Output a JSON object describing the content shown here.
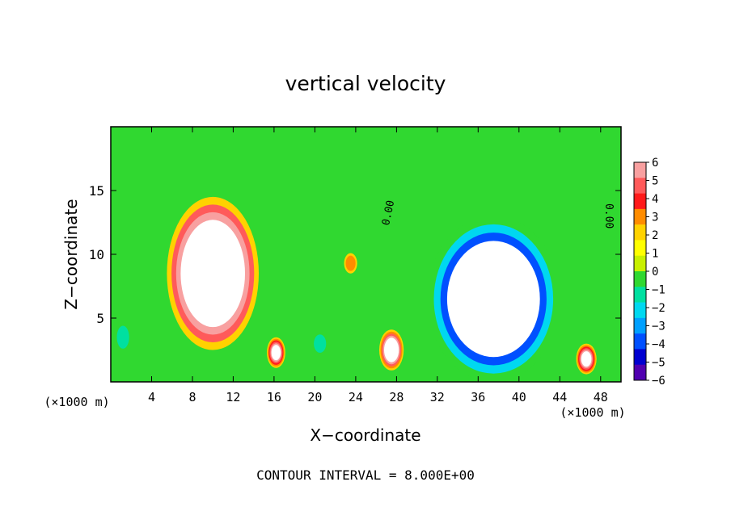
{
  "chart_data": {
    "type": "heatmap",
    "title": "vertical velocity",
    "xlabel": "X−coordinate",
    "ylabel": "Z−coordinate",
    "x_unit_left": "(×1000 m)",
    "x_unit_right": "(×1000 m)",
    "footer": "CONTOUR INTERVAL = 8.000E+00",
    "xlim": [
      0,
      50
    ],
    "ylim": [
      0,
      20
    ],
    "x_ticks": [
      4,
      8,
      12,
      16,
      20,
      24,
      28,
      32,
      36,
      40,
      44,
      48
    ],
    "x_tick_labels": [
      "4",
      "8",
      "12",
      "16",
      "20",
      "24",
      "28",
      "32",
      "36",
      "40",
      "44",
      "48"
    ],
    "y_ticks": [
      5,
      10,
      15
    ],
    "y_tick_labels": [
      "5",
      "10",
      "15"
    ],
    "contour_labels": [
      {
        "text": "0.00",
        "x": 27.5,
        "y": 13.2,
        "angle": -78
      },
      {
        "text": "0.00",
        "x": 48.5,
        "y": 13.0,
        "angle": 90
      }
    ],
    "colorbar": {
      "levels": [
        6,
        5,
        4,
        3,
        2,
        1,
        0,
        -1,
        -2,
        -3,
        -4,
        -5,
        -6
      ],
      "labels": [
        "6",
        "5",
        "4",
        "3",
        "2",
        "1",
        "0",
        "−1",
        "−2",
        "−3",
        "−4",
        "−5",
        "−6"
      ],
      "colors": [
        "#f8a0a0",
        "#ff5a5a",
        "#ff1a1a",
        "#ff8c00",
        "#ffd200",
        "#ffff00",
        "#c8f000",
        "#30d830",
        "#00e0a0",
        "#00d8f0",
        "#00a0ff",
        "#0050ff",
        "#0000d0",
        "#5000b0"
      ]
    },
    "features": [
      {
        "kind": "updraft-core",
        "x": 10.0,
        "z": 8.5,
        "peak": 13,
        "rx": 4.5,
        "rz": 6.0
      },
      {
        "kind": "updraft-cell",
        "x": 27.5,
        "z": 2.5,
        "peak": 9,
        "rx": 1.2,
        "rz": 1.6
      },
      {
        "kind": "updraft-cell",
        "x": 16.2,
        "z": 2.3,
        "peak": 8,
        "rx": 0.9,
        "rz": 1.2
      },
      {
        "kind": "updraft-cell",
        "x": 46.6,
        "z": 1.8,
        "peak": 8,
        "rx": 1.0,
        "rz": 1.2
      },
      {
        "kind": "updraft-cell",
        "x": 23.5,
        "z": 9.3,
        "peak": 3,
        "rx": 0.8,
        "rz": 1.0
      },
      {
        "kind": "downdraft-core",
        "x": 37.5,
        "z": 6.5,
        "peak": -12,
        "rx": 6.5,
        "rz": 6.5
      },
      {
        "kind": "downdraft-cell",
        "x": 20.5,
        "z": 3.0,
        "peak": -3,
        "rx": 1.0,
        "rz": 1.2
      },
      {
        "kind": "downdraft-cell",
        "x": 1.2,
        "z": 3.5,
        "peak": -3,
        "rx": 1.0,
        "rz": 1.5
      }
    ]
  }
}
